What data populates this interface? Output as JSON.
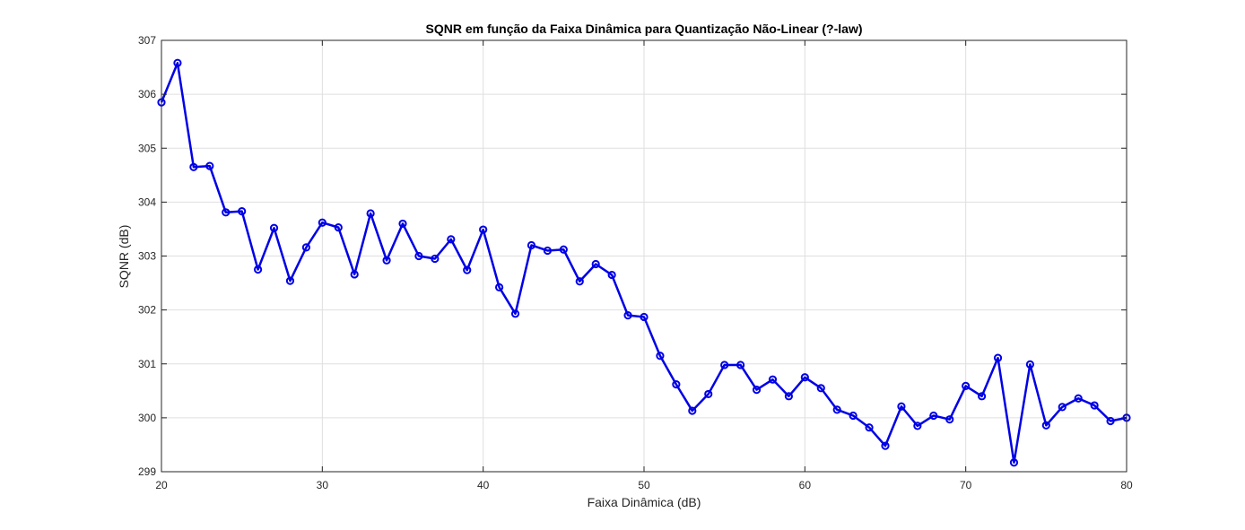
{
  "chart_data": {
    "type": "line",
    "title": "SQNR em função da Faixa Dinâmica para Quantização Não-Linear (?-law)",
    "xlabel": "Faixa Dinâmica (dB)",
    "ylabel": "SQNR (dB)",
    "xlim": [
      20,
      80
    ],
    "ylim": [
      299,
      307
    ],
    "xticks": [
      20,
      30,
      40,
      50,
      60,
      70,
      80
    ],
    "yticks": [
      299,
      300,
      301,
      302,
      303,
      304,
      305,
      306,
      307
    ],
    "xtick_labels": [
      "20",
      "30",
      "40",
      "50",
      "60",
      "70",
      "80"
    ],
    "ytick_labels": [
      "299",
      "300",
      "301",
      "302",
      "303",
      "304",
      "305",
      "306",
      "307"
    ],
    "grid": true,
    "legend": "none",
    "marker": "circle",
    "color": "#0000e6",
    "series": [
      {
        "x": [
          20,
          21,
          22,
          23,
          24,
          25,
          26,
          27,
          28,
          29,
          30,
          31,
          32,
          33,
          34,
          35,
          36,
          37,
          38,
          39,
          40,
          41,
          42,
          43,
          44,
          45,
          46,
          47,
          48,
          49,
          50,
          51,
          52,
          53,
          54,
          55,
          56,
          57,
          58,
          59,
          60,
          61,
          62,
          63,
          64,
          65,
          66,
          67,
          68,
          69,
          70,
          71,
          72,
          73,
          74,
          75,
          76,
          77,
          78,
          79,
          80
        ],
        "y": [
          305.85,
          306.58,
          304.65,
          304.67,
          303.81,
          303.83,
          302.75,
          303.52,
          302.54,
          303.16,
          303.62,
          303.53,
          302.66,
          303.79,
          302.92,
          303.6,
          303.0,
          302.95,
          303.31,
          302.74,
          303.49,
          302.42,
          301.93,
          303.2,
          303.1,
          303.12,
          302.53,
          302.85,
          302.65,
          301.9,
          301.87,
          301.15,
          300.62,
          300.13,
          300.44,
          300.98,
          300.98,
          300.52,
          300.71,
          300.4,
          300.75,
          300.55,
          300.15,
          300.04,
          299.82,
          299.48,
          300.21,
          299.85,
          300.04,
          299.97,
          300.59,
          300.4,
          301.11,
          299.17,
          300.99,
          299.86,
          300.2,
          300.36,
          300.23,
          299.94,
          300.0
        ]
      }
    ]
  }
}
